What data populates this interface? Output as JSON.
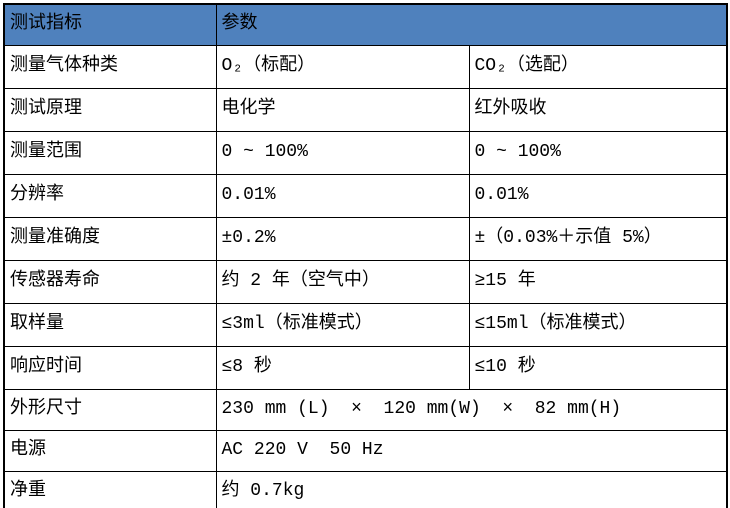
{
  "colors": {
    "header_bg": "#4F81BD",
    "border": "#000000"
  },
  "table": {
    "header": {
      "indicator": "测试指标",
      "parameter": "参数"
    },
    "rows": [
      {
        "label": "测量气体种类",
        "values": [
          "O₂（标配）",
          "CO₂（选配）"
        ]
      },
      {
        "label": "测试原理",
        "values": [
          "电化学",
          "红外吸收"
        ]
      },
      {
        "label": "测量范围",
        "values": [
          "0 ~ 100%",
          "0 ~ 100%"
        ]
      },
      {
        "label": "分辨率",
        "values": [
          "0.01%",
          "0.01%"
        ]
      },
      {
        "label": "测量准确度",
        "values": [
          "±0.2%",
          "±（0.03%＋示值 5%）"
        ]
      },
      {
        "label": "传感器寿命",
        "values": [
          "约 2 年（空气中）",
          "≥15 年"
        ]
      },
      {
        "label": "取样量",
        "values": [
          "≤3ml（标准模式）",
          "≤15ml（标准模式）"
        ]
      },
      {
        "label": "响应时间",
        "values": [
          "≤8 秒",
          "≤10 秒"
        ]
      },
      {
        "label": "外形尺寸",
        "values": [
          "230 mm (L)  ×  120 mm(W)  ×  82 mm(H)"
        ]
      },
      {
        "label": "电源",
        "values": [
          "AC 220 V  50 Hz"
        ]
      },
      {
        "label": "净重",
        "values": [
          "约 0.7kg"
        ]
      }
    ]
  }
}
